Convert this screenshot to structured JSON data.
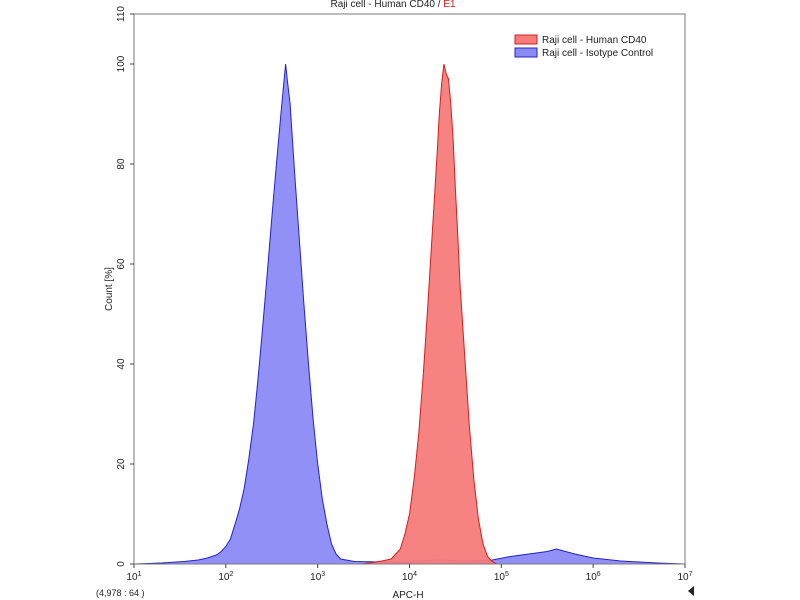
{
  "chart_data": {
    "type": "area",
    "title": "Raji cell - Human CD40 / ",
    "title_gate": "E1",
    "xlabel": "APC-H",
    "ylabel": "Count [%]",
    "x_scale": "log",
    "xlim": [
      10,
      10000000
    ],
    "ylim": [
      0,
      110
    ],
    "x_ticks": [
      {
        "value": 10,
        "base": "10",
        "exp": "1"
      },
      {
        "value": 100,
        "base": "10",
        "exp": "2"
      },
      {
        "value": 1000,
        "base": "10",
        "exp": "3"
      },
      {
        "value": 10000,
        "base": "10",
        "exp": "4"
      },
      {
        "value": 100000,
        "base": "10",
        "exp": "5"
      },
      {
        "value": 1000000,
        "base": "10",
        "exp": "6"
      },
      {
        "value": 10000000,
        "base": "10",
        "exp": "7"
      }
    ],
    "y_ticks": [
      0,
      20,
      40,
      60,
      80,
      100,
      110
    ],
    "grid": false,
    "legend": "top-right",
    "coordinate_readout": "(4,978 : 64 )",
    "series": [
      {
        "name": "Raji cell - Human CD40",
        "color": "#f77b7b",
        "stroke": "#d11f1f",
        "points": [
          [
            3000,
            0
          ],
          [
            3981,
            0.3
          ],
          [
            5012,
            0.6
          ],
          [
            6310,
            1
          ],
          [
            7943,
            3
          ],
          [
            8913,
            6
          ],
          [
            10000,
            10
          ],
          [
            11220,
            17
          ],
          [
            12589,
            26
          ],
          [
            14125,
            38
          ],
          [
            15849,
            52
          ],
          [
            17783,
            67
          ],
          [
            19953,
            82
          ],
          [
            21135,
            90
          ],
          [
            22387,
            96
          ],
          [
            23714,
            100
          ],
          [
            25119,
            98
          ],
          [
            26607,
            97
          ],
          [
            28184,
            92
          ],
          [
            29854,
            85
          ],
          [
            31623,
            75
          ],
          [
            33497,
            66
          ],
          [
            35481,
            56
          ],
          [
            39811,
            42
          ],
          [
            44668,
            28
          ],
          [
            50119,
            17
          ],
          [
            56234,
            9
          ],
          [
            63096,
            4
          ],
          [
            70795,
            1.5
          ],
          [
            79433,
            0.5
          ],
          [
            89125,
            0
          ]
        ]
      },
      {
        "name": "Raji cell - Isotype Control",
        "color": "#8a8af5",
        "stroke": "#2222c8",
        "points": [
          [
            10,
            0
          ],
          [
            20,
            0.2
          ],
          [
            35,
            0.5
          ],
          [
            50,
            0.8
          ],
          [
            63,
            1.2
          ],
          [
            79,
            1.8
          ],
          [
            89,
            2.5
          ],
          [
            100,
            3.5
          ],
          [
            112,
            5
          ],
          [
            126,
            8
          ],
          [
            141,
            11
          ],
          [
            158,
            15
          ],
          [
            178,
            21
          ],
          [
            200,
            28
          ],
          [
            224,
            37
          ],
          [
            251,
            47
          ],
          [
            282,
            58
          ],
          [
            316,
            69
          ],
          [
            355,
            80
          ],
          [
            398,
            90
          ],
          [
            447,
            100
          ],
          [
            473,
            96
          ],
          [
            501,
            92
          ],
          [
            562,
            78
          ],
          [
            631,
            65
          ],
          [
            708,
            52
          ],
          [
            794,
            40
          ],
          [
            891,
            29
          ],
          [
            1000,
            20
          ],
          [
            1122,
            13
          ],
          [
            1259,
            8
          ],
          [
            1413,
            4
          ],
          [
            1585,
            2
          ],
          [
            1778,
            1
          ],
          [
            2512,
            0.5
          ],
          [
            5012,
            0.4
          ],
          [
            10000,
            0.5
          ],
          [
            20000,
            0.8
          ],
          [
            40000,
            0.6
          ],
          [
            79433,
            0.8
          ],
          [
            125893,
            1.5
          ],
          [
            199526,
            2
          ],
          [
            316228,
            2.5
          ],
          [
            398107,
            3
          ],
          [
            501187,
            2.5
          ],
          [
            631000,
            2
          ],
          [
            1000000,
            1.2
          ],
          [
            2000000,
            0.6
          ],
          [
            5000000,
            0.2
          ],
          [
            10000000,
            0
          ]
        ]
      }
    ]
  },
  "colors": {
    "frame": "#7a7a7a",
    "arrow": "#222222"
  },
  "icons": {
    "scroll_marker": "triangle-left-icon"
  }
}
